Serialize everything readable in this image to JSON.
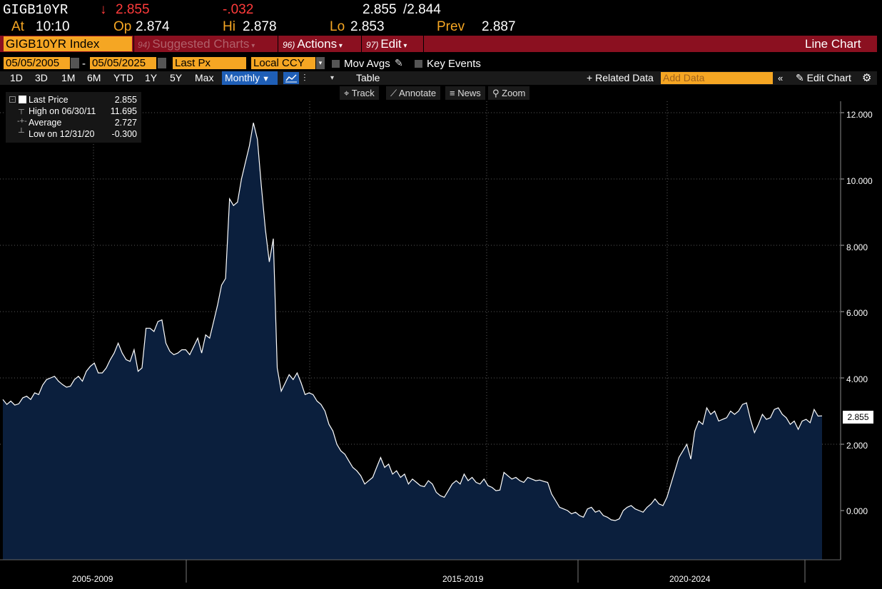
{
  "quote": {
    "ticker": "GIGB10YR",
    "arrow": "↓",
    "last": "2.855",
    "change": "-.032",
    "bid": "2.855",
    "ask": "/2.844",
    "at_label": "At",
    "at_time": "10:10",
    "op_label": "Op",
    "op": "2.874",
    "hi_label": "Hi",
    "hi": "2.878",
    "lo_label": "Lo",
    "lo": "2.853",
    "prev_label": "Prev",
    "prev": "2.887"
  },
  "menubar": {
    "security": "GIGB10YR Index",
    "suggested_num": "94)",
    "suggested": "Suggested Charts",
    "actions_num": "96)",
    "actions": "Actions",
    "edit_num": "97)",
    "edit": "Edit",
    "chart_type": "Line Chart"
  },
  "controls": {
    "start_date": "05/05/2005",
    "dash": "-",
    "end_date": "05/05/2025",
    "field": "Last Px",
    "currency": "Local CCY",
    "mov_avgs": "Mov Avgs",
    "key_events": "Key Events"
  },
  "range": {
    "buttons": [
      "1D",
      "3D",
      "1M",
      "6M",
      "YTD",
      "1Y",
      "5Y",
      "Max"
    ],
    "period": "Monthly",
    "table": "Table",
    "related": "Related Data",
    "add_data_placeholder": "Add Data",
    "edit_chart": "Edit Chart"
  },
  "tools": {
    "track": "Track",
    "annotate": "Annotate",
    "news": "News",
    "zoom": "Zoom"
  },
  "legend": {
    "last_label": "Last Price",
    "last_value": "2.855",
    "high_label": "High on 06/30/11",
    "high_value": "11.695",
    "avg_label": "Average",
    "avg_value": "2.727",
    "low_label": "Low on 12/31/20",
    "low_value": "-0.300"
  },
  "colors": {
    "accent": "#f5a623",
    "menubar": "#8b1020",
    "down": "#ff3b3b",
    "area_fill": "#0b1f3d",
    "line": "#ffffff"
  },
  "chart_data": {
    "type": "area",
    "x_start": "2005-05",
    "x_end": "2025-05",
    "frequency": "monthly",
    "x_tick_labels": [
      "2005-2009",
      "2015-2019",
      "2020-2024"
    ],
    "y_ticks": [
      "12.000",
      "10.000",
      "8.000",
      "6.000",
      "4.000",
      "2.000",
      "0.000"
    ],
    "ylim": [
      -1.5,
      12.6
    ],
    "last_value_label": "2.855",
    "grid": true,
    "legend": "top-left",
    "series": [
      {
        "name": "Last Price",
        "values": [
          3.35,
          3.2,
          3.3,
          3.18,
          3.22,
          3.4,
          3.45,
          3.35,
          3.55,
          3.5,
          3.78,
          3.95,
          4.0,
          4.05,
          3.9,
          3.8,
          3.72,
          3.75,
          3.95,
          4.05,
          3.9,
          4.2,
          4.35,
          4.45,
          4.15,
          4.15,
          4.3,
          4.55,
          4.75,
          5.05,
          4.75,
          4.55,
          4.5,
          4.85,
          4.2,
          4.3,
          5.5,
          5.5,
          5.4,
          5.7,
          5.75,
          5.05,
          4.8,
          4.7,
          4.75,
          4.85,
          4.85,
          4.7,
          4.95,
          5.2,
          4.75,
          5.3,
          5.2,
          5.7,
          6.2,
          6.8,
          7.0,
          9.4,
          9.2,
          9.3,
          10.0,
          10.5,
          11.0,
          11.695,
          11.2,
          9.8,
          8.5,
          7.5,
          8.2,
          4.3,
          3.6,
          3.85,
          4.1,
          3.95,
          4.15,
          3.85,
          3.5,
          3.55,
          3.5,
          3.3,
          3.2,
          3.0,
          2.6,
          2.4,
          2.0,
          1.8,
          1.7,
          1.5,
          1.3,
          1.2,
          1.05,
          0.8,
          0.9,
          1.0,
          1.3,
          1.6,
          1.3,
          1.4,
          1.1,
          1.2,
          1.0,
          1.1,
          0.8,
          0.95,
          0.85,
          0.75,
          0.72,
          0.9,
          0.8,
          0.55,
          0.45,
          0.4,
          0.6,
          0.8,
          0.9,
          0.8,
          1.1,
          0.9,
          1.0,
          0.85,
          0.8,
          0.95,
          0.75,
          0.7,
          0.6,
          0.62,
          1.15,
          1.05,
          0.95,
          1.0,
          0.9,
          0.85,
          1.0,
          0.95,
          0.9,
          0.92,
          0.88,
          0.85,
          0.5,
          0.3,
          0.1,
          0.05,
          0.0,
          -0.1,
          -0.05,
          -0.15,
          -0.2,
          0.05,
          0.1,
          -0.05,
          0.0,
          -0.15,
          -0.2,
          -0.28,
          -0.3,
          -0.25,
          0.0,
          0.1,
          0.15,
          0.05,
          0.0,
          -0.05,
          0.1,
          0.2,
          0.35,
          0.2,
          0.15,
          0.4,
          0.8,
          1.2,
          1.6,
          1.8,
          2.0,
          1.55,
          2.4,
          2.7,
          2.6,
          3.1,
          2.9,
          3.0,
          2.7,
          2.75,
          2.8,
          3.0,
          2.9,
          3.0,
          3.2,
          3.25,
          2.75,
          2.35,
          2.6,
          2.9,
          2.75,
          2.8,
          3.05,
          3.1,
          2.9,
          2.8,
          2.6,
          2.7,
          2.45,
          2.7,
          2.75,
          2.65,
          3.05,
          2.85,
          2.855
        ]
      }
    ]
  }
}
